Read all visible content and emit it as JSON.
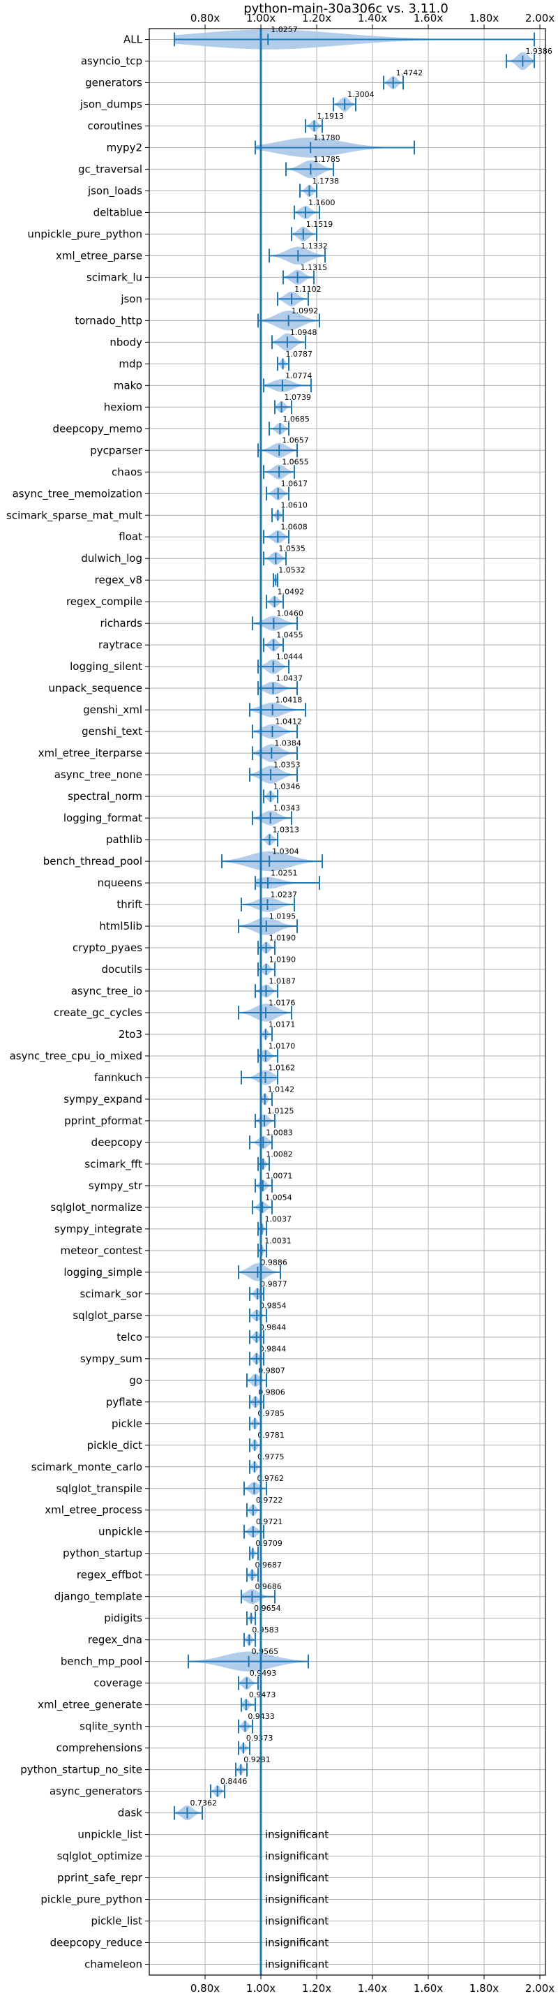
{
  "chart_data": {
    "type": "violin",
    "title": "python-main-30a306c vs. 3.11.0",
    "xlabel": "",
    "ylabel": "",
    "xlim": [
      0.6,
      2.02
    ],
    "x_ticks": [
      0.8,
      1.0,
      1.2,
      1.4,
      1.6,
      1.8,
      2.0
    ],
    "x_tick_labels": [
      "0.80x",
      "1.00x",
      "1.20x",
      "1.40x",
      "1.60x",
      "1.80x",
      "2.00x"
    ],
    "ticks_top_and_bottom": true,
    "grid": true,
    "reference_line": 1.0,
    "colors": {
      "violin": "#a8c8e8",
      "line": "#1f77b4",
      "grid": "#b0b0b0"
    },
    "insignificant_label": "insignificant",
    "benchmarks": [
      {
        "name": "ALL",
        "mean": 1.0257,
        "min": 0.69,
        "max": 1.98,
        "spread": 0.1
      },
      {
        "name": "asyncio_tcp",
        "mean": 1.9386,
        "min": 1.88,
        "max": 1.98,
        "spread": 0.08
      },
      {
        "name": "generators",
        "mean": 1.4742,
        "min": 1.44,
        "max": 1.51,
        "spread": 0.05
      },
      {
        "name": "json_dumps",
        "mean": 1.3004,
        "min": 1.26,
        "max": 1.34,
        "spread": 0.06
      },
      {
        "name": "coroutines",
        "mean": 1.1913,
        "min": 1.16,
        "max": 1.22,
        "spread": 0.04
      },
      {
        "name": "mypy2",
        "mean": 1.178,
        "min": 0.98,
        "max": 1.55,
        "spread": 0.14
      },
      {
        "name": "gc_traversal",
        "mean": 1.1785,
        "min": 1.09,
        "max": 1.26,
        "spread": 0.08
      },
      {
        "name": "json_loads",
        "mean": 1.1738,
        "min": 1.14,
        "max": 1.2,
        "spread": 0.04
      },
      {
        "name": "deltablue",
        "mean": 1.16,
        "min": 1.12,
        "max": 1.21,
        "spread": 0.05
      },
      {
        "name": "unpickle_pure_python",
        "mean": 1.1519,
        "min": 1.11,
        "max": 1.2,
        "spread": 0.06
      },
      {
        "name": "xml_etree_parse",
        "mean": 1.1332,
        "min": 1.03,
        "max": 1.23,
        "spread": 0.08
      },
      {
        "name": "scimark_lu",
        "mean": 1.1315,
        "min": 1.08,
        "max": 1.19,
        "spread": 0.06
      },
      {
        "name": "json",
        "mean": 1.1102,
        "min": 1.06,
        "max": 1.17,
        "spread": 0.06
      },
      {
        "name": "tornado_http",
        "mean": 1.0992,
        "min": 0.99,
        "max": 1.21,
        "spread": 0.1
      },
      {
        "name": "nbody",
        "mean": 1.0948,
        "min": 1.04,
        "max": 1.16,
        "spread": 0.08
      },
      {
        "name": "mdp",
        "mean": 1.0787,
        "min": 1.06,
        "max": 1.1,
        "spread": 0.03
      },
      {
        "name": "mako",
        "mean": 1.0774,
        "min": 1.01,
        "max": 1.18,
        "spread": 0.05
      },
      {
        "name": "hexiom",
        "mean": 1.0739,
        "min": 1.05,
        "max": 1.11,
        "spread": 0.04
      },
      {
        "name": "deepcopy_memo",
        "mean": 1.0685,
        "min": 1.03,
        "max": 1.1,
        "spread": 0.04
      },
      {
        "name": "pycparser",
        "mean": 1.0657,
        "min": 0.99,
        "max": 1.13,
        "spread": 0.06
      },
      {
        "name": "chaos",
        "mean": 1.0655,
        "min": 1.01,
        "max": 1.12,
        "spread": 0.06
      },
      {
        "name": "async_tree_memoization",
        "mean": 1.0617,
        "min": 1.02,
        "max": 1.1,
        "spread": 0.05
      },
      {
        "name": "scimark_sparse_mat_mult",
        "mean": 1.061,
        "min": 1.04,
        "max": 1.08,
        "spread": 0.03
      },
      {
        "name": "float",
        "mean": 1.0608,
        "min": 1.01,
        "max": 1.1,
        "spread": 0.05
      },
      {
        "name": "dulwich_log",
        "mean": 1.0535,
        "min": 1.01,
        "max": 1.09,
        "spread": 0.05
      },
      {
        "name": "regex_v8",
        "mean": 1.0532,
        "min": 1.045,
        "max": 1.06,
        "spread": 0.01
      },
      {
        "name": "regex_compile",
        "mean": 1.0492,
        "min": 1.02,
        "max": 1.08,
        "spread": 0.04
      },
      {
        "name": "richards",
        "mean": 1.046,
        "min": 0.97,
        "max": 1.13,
        "spread": 0.06
      },
      {
        "name": "raytrace",
        "mean": 1.0455,
        "min": 1.01,
        "max": 1.08,
        "spread": 0.05
      },
      {
        "name": "logging_silent",
        "mean": 1.0444,
        "min": 0.99,
        "max": 1.1,
        "spread": 0.06
      },
      {
        "name": "unpack_sequence",
        "mean": 1.0437,
        "min": 0.99,
        "max": 1.13,
        "spread": 0.05
      },
      {
        "name": "genshi_xml",
        "mean": 1.0418,
        "min": 0.96,
        "max": 1.16,
        "spread": 0.06
      },
      {
        "name": "genshi_text",
        "mean": 1.0412,
        "min": 0.97,
        "max": 1.13,
        "spread": 0.06
      },
      {
        "name": "xml_etree_iterparse",
        "mean": 1.0384,
        "min": 0.97,
        "max": 1.13,
        "spread": 0.08
      },
      {
        "name": "async_tree_none",
        "mean": 1.0353,
        "min": 0.96,
        "max": 1.13,
        "spread": 0.08
      },
      {
        "name": "spectral_norm",
        "mean": 1.0346,
        "min": 1.01,
        "max": 1.06,
        "spread": 0.04
      },
      {
        "name": "logging_format",
        "mean": 1.0343,
        "min": 0.97,
        "max": 1.11,
        "spread": 0.06
      },
      {
        "name": "pathlib",
        "mean": 1.0313,
        "min": 1.0,
        "max": 1.06,
        "spread": 0.04
      },
      {
        "name": "bench_thread_pool",
        "mean": 1.0304,
        "min": 0.86,
        "max": 1.22,
        "spread": 0.16
      },
      {
        "name": "nqueens",
        "mean": 1.0251,
        "min": 0.98,
        "max": 1.21,
        "spread": 0.04
      },
      {
        "name": "thrift",
        "mean": 1.0237,
        "min": 0.93,
        "max": 1.12,
        "spread": 0.06
      },
      {
        "name": "html5lib",
        "mean": 1.0195,
        "min": 0.92,
        "max": 1.13,
        "spread": 0.08
      },
      {
        "name": "crypto_pyaes",
        "mean": 1.019,
        "min": 0.99,
        "max": 1.05,
        "spread": 0.04
      },
      {
        "name": "docutils",
        "mean": 1.019,
        "min": 0.99,
        "max": 1.05,
        "spread": 0.04
      },
      {
        "name": "async_tree_io",
        "mean": 1.0187,
        "min": 0.98,
        "max": 1.06,
        "spread": 0.05
      },
      {
        "name": "create_gc_cycles",
        "mean": 1.0176,
        "min": 0.92,
        "max": 1.11,
        "spread": 0.08
      },
      {
        "name": "2to3",
        "mean": 1.0171,
        "min": 1.0,
        "max": 1.04,
        "spread": 0.03
      },
      {
        "name": "async_tree_cpu_io_mixed",
        "mean": 1.017,
        "min": 0.99,
        "max": 1.06,
        "spread": 0.05
      },
      {
        "name": "fannkuch",
        "mean": 1.0162,
        "min": 0.93,
        "max": 1.06,
        "spread": 0.06
      },
      {
        "name": "sympy_expand",
        "mean": 1.0142,
        "min": 1.0,
        "max": 1.04,
        "spread": 0.04
      },
      {
        "name": "pprint_pformat",
        "mean": 1.0125,
        "min": 0.98,
        "max": 1.05,
        "spread": 0.05
      },
      {
        "name": "deepcopy",
        "mean": 1.0083,
        "min": 0.96,
        "max": 1.04,
        "spread": 0.05
      },
      {
        "name": "scimark_fft",
        "mean": 1.0082,
        "min": 0.99,
        "max": 1.03,
        "spread": 0.03
      },
      {
        "name": "sympy_str",
        "mean": 1.0071,
        "min": 0.98,
        "max": 1.04,
        "spread": 0.04
      },
      {
        "name": "sqlglot_normalize",
        "mean": 1.0054,
        "min": 0.97,
        "max": 1.04,
        "spread": 0.04
      },
      {
        "name": "sympy_integrate",
        "mean": 1.0037,
        "min": 0.99,
        "max": 1.02,
        "spread": 0.03
      },
      {
        "name": "meteor_contest",
        "mean": 1.0031,
        "min": 0.99,
        "max": 1.02,
        "spread": 0.02
      },
      {
        "name": "logging_simple",
        "mean": 0.9886,
        "min": 0.92,
        "max": 1.07,
        "spread": 0.08
      },
      {
        "name": "scimark_sor",
        "mean": 0.9877,
        "min": 0.96,
        "max": 1.01,
        "spread": 0.04
      },
      {
        "name": "sqlglot_parse",
        "mean": 0.9854,
        "min": 0.96,
        "max": 1.02,
        "spread": 0.04
      },
      {
        "name": "telco",
        "mean": 0.9844,
        "min": 0.96,
        "max": 1.01,
        "spread": 0.04
      },
      {
        "name": "sympy_sum",
        "mean": 0.9844,
        "min": 0.96,
        "max": 1.01,
        "spread": 0.04
      },
      {
        "name": "go",
        "mean": 0.9807,
        "min": 0.95,
        "max": 1.02,
        "spread": 0.05
      },
      {
        "name": "pyflate",
        "mean": 0.9806,
        "min": 0.96,
        "max": 1.01,
        "spread": 0.04
      },
      {
        "name": "pickle",
        "mean": 0.9785,
        "min": 0.96,
        "max": 1.0,
        "spread": 0.04
      },
      {
        "name": "pickle_dict",
        "mean": 0.9781,
        "min": 0.96,
        "max": 1.0,
        "spread": 0.04
      },
      {
        "name": "scimark_monte_carlo",
        "mean": 0.9775,
        "min": 0.96,
        "max": 1.0,
        "spread": 0.04
      },
      {
        "name": "sqlglot_transpile",
        "mean": 0.9762,
        "min": 0.94,
        "max": 1.02,
        "spread": 0.05
      },
      {
        "name": "xml_etree_process",
        "mean": 0.9722,
        "min": 0.95,
        "max": 1.0,
        "spread": 0.04
      },
      {
        "name": "unpickle",
        "mean": 0.9721,
        "min": 0.94,
        "max": 1.01,
        "spread": 0.04
      },
      {
        "name": "python_startup",
        "mean": 0.9709,
        "min": 0.96,
        "max": 0.99,
        "spread": 0.03
      },
      {
        "name": "regex_effbot",
        "mean": 0.9687,
        "min": 0.95,
        "max": 0.99,
        "spread": 0.04
      },
      {
        "name": "django_template",
        "mean": 0.9686,
        "min": 0.93,
        "max": 1.05,
        "spread": 0.06
      },
      {
        "name": "pidigits",
        "mean": 0.9654,
        "min": 0.95,
        "max": 0.98,
        "spread": 0.02
      },
      {
        "name": "regex_dna",
        "mean": 0.9583,
        "min": 0.94,
        "max": 0.98,
        "spread": 0.04
      },
      {
        "name": "bench_mp_pool",
        "mean": 0.9565,
        "min": 0.74,
        "max": 1.17,
        "spread": 0.14
      },
      {
        "name": "coverage",
        "mean": 0.9493,
        "min": 0.92,
        "max": 0.99,
        "spread": 0.05
      },
      {
        "name": "xml_etree_generate",
        "mean": 0.9473,
        "min": 0.93,
        "max": 0.98,
        "spread": 0.04
      },
      {
        "name": "sqlite_synth",
        "mean": 0.9433,
        "min": 0.92,
        "max": 0.97,
        "spread": 0.04
      },
      {
        "name": "comprehensions",
        "mean": 0.9373,
        "min": 0.92,
        "max": 0.96,
        "spread": 0.03
      },
      {
        "name": "python_startup_no_site",
        "mean": 0.9281,
        "min": 0.91,
        "max": 0.95,
        "spread": 0.03
      },
      {
        "name": "async_generators",
        "mean": 0.8446,
        "min": 0.82,
        "max": 0.87,
        "spread": 0.04
      },
      {
        "name": "dask",
        "mean": 0.7362,
        "min": 0.69,
        "max": 0.79,
        "spread": 0.06
      },
      {
        "name": "unpickle_list",
        "insignificant": true
      },
      {
        "name": "sqlglot_optimize",
        "insignificant": true
      },
      {
        "name": "pprint_safe_repr",
        "insignificant": true
      },
      {
        "name": "pickle_pure_python",
        "insignificant": true
      },
      {
        "name": "pickle_list",
        "insignificant": true
      },
      {
        "name": "deepcopy_reduce",
        "insignificant": true
      },
      {
        "name": "chameleon",
        "insignificant": true
      }
    ]
  }
}
